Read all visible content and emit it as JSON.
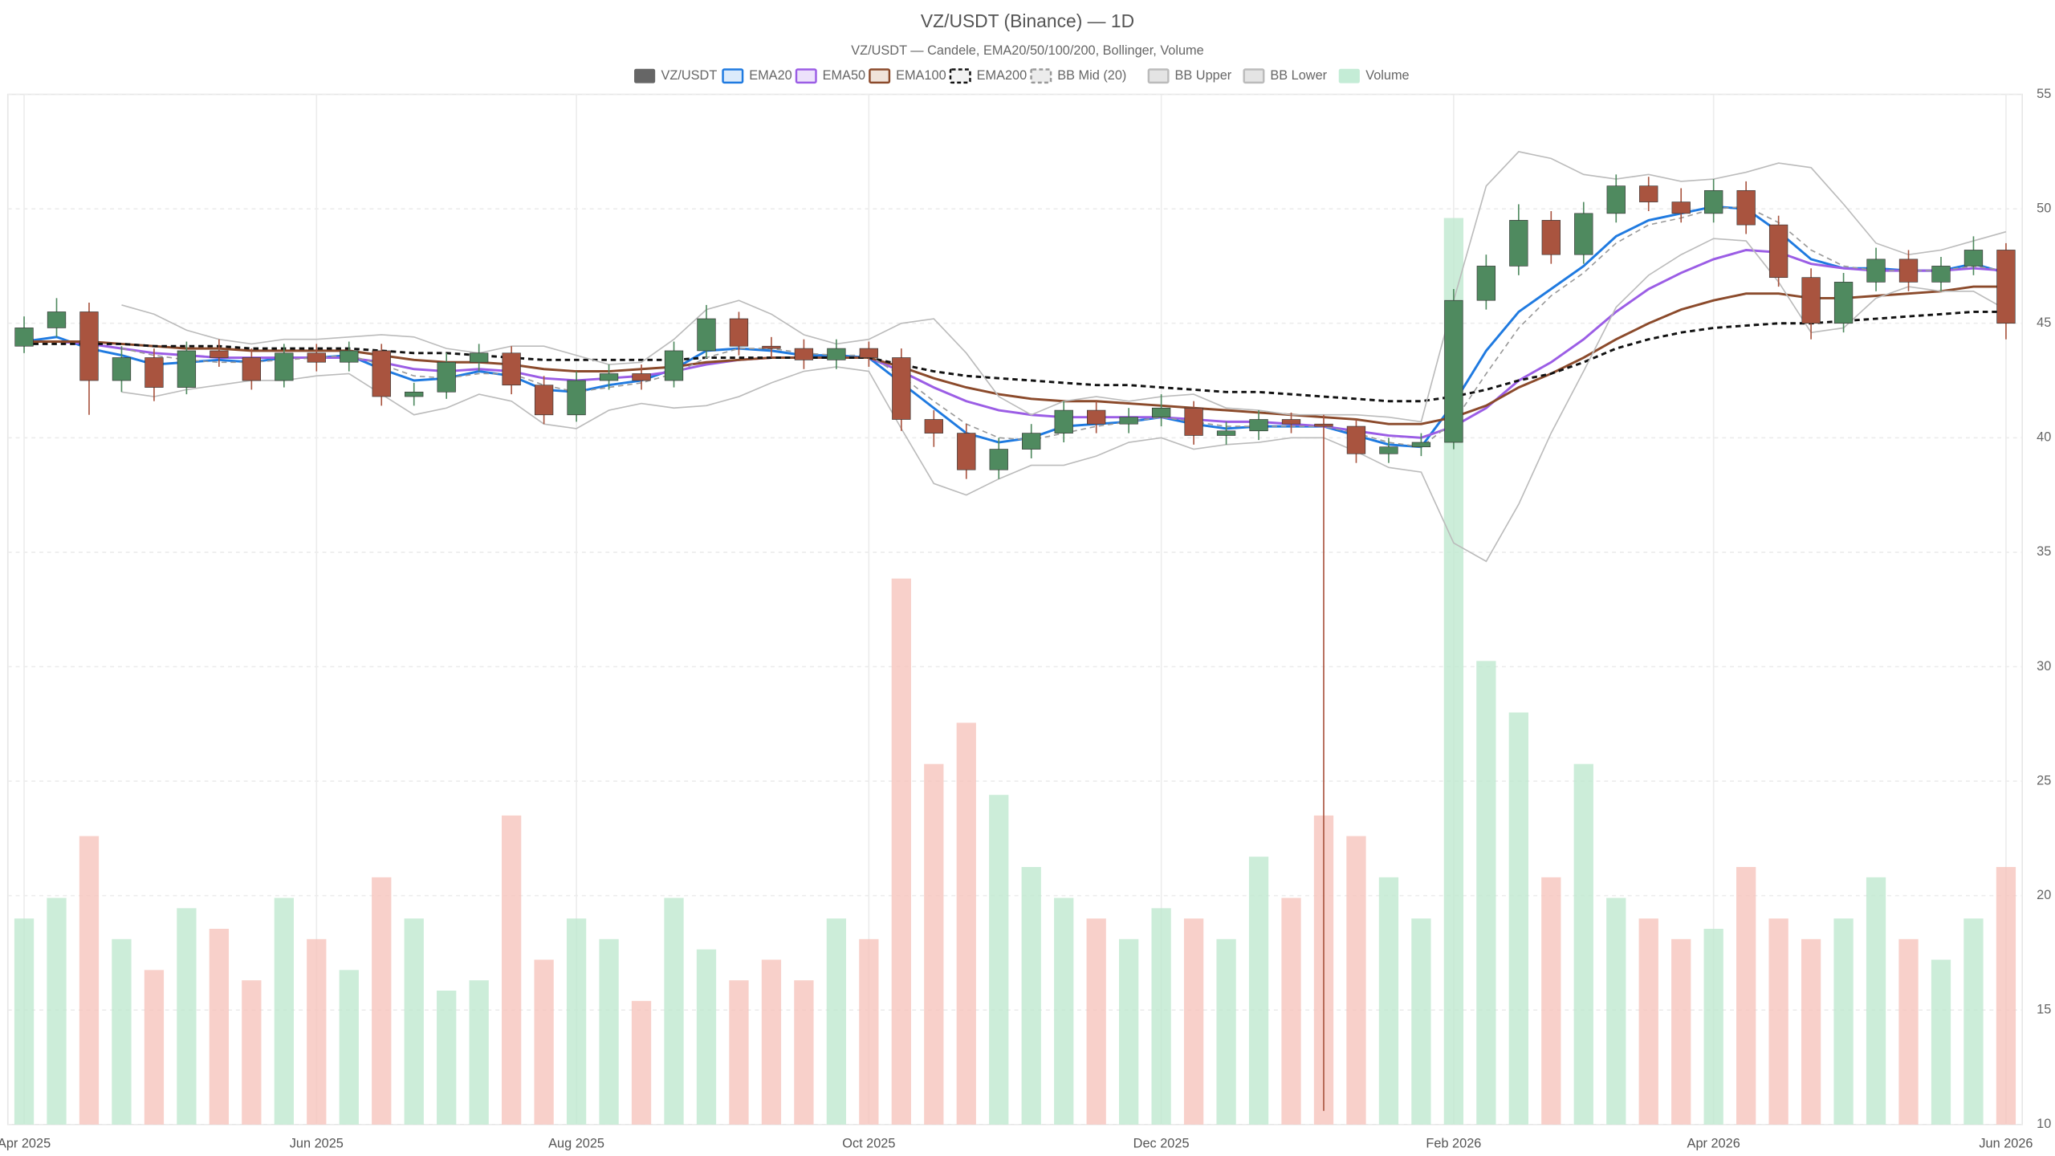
{
  "chart_data": {
    "type": "candlestick",
    "title": "VZ/USDT (Binance) — 1D",
    "subtitle": "VZ/USDT — Candele, EMA20/50/100/200, Bollinger, Volume",
    "categories": [
      "Apr 2025",
      null,
      null,
      null,
      null,
      null,
      null,
      null,
      null,
      "Jun 2025",
      null,
      null,
      null,
      null,
      null,
      null,
      null,
      "Aug 2025",
      null,
      null,
      null,
      null,
      null,
      null,
      null,
      null,
      "Oct 2025",
      null,
      null,
      null,
      null,
      null,
      null,
      null,
      null,
      "Dec 2025",
      null,
      null,
      null,
      null,
      null,
      null,
      null,
      null,
      "Feb 2026",
      null,
      null,
      null,
      null,
      null,
      null,
      null,
      "Apr 2026",
      null,
      null,
      null,
      null,
      null,
      null,
      null,
      null,
      "Jun 2026"
    ],
    "ylim": [
      10,
      55
    ],
    "yticks": [
      10,
      15,
      20,
      25,
      30,
      35,
      40,
      45,
      50,
      55
    ],
    "y2lim": [
      0,
      100
    ],
    "grid": true,
    "legend": "top",
    "series": [
      {
        "name": "VZ/USDT",
        "type": "candlestick",
        "color": "#666666",
        "up_color": "#4f8a5f",
        "down_color": "#a9543f",
        "open": [
          44.0,
          44.8,
          45.5,
          42.5,
          43.5,
          42.2,
          43.8,
          43.5,
          42.5,
          43.7,
          43.3,
          43.8,
          41.8,
          42.0,
          43.3,
          43.7,
          42.3,
          41.0,
          42.5,
          42.8,
          42.5,
          43.8,
          45.2,
          44.0,
          43.9,
          43.4,
          43.9,
          43.5,
          40.8,
          40.2,
          38.6,
          39.5,
          40.2,
          41.2,
          40.6,
          40.9,
          41.3,
          40.1,
          40.3,
          40.8,
          40.6,
          40.5,
          39.3,
          39.6,
          39.8,
          46.0,
          47.5,
          49.5,
          48.0,
          49.8,
          51.0,
          50.3,
          49.8,
          50.8,
          49.3,
          47.0,
          45.0,
          46.8,
          47.8,
          46.8,
          47.5,
          48.2
        ],
        "high": [
          45.3,
          46.1,
          45.9,
          44.0,
          43.9,
          44.2,
          44.3,
          43.9,
          44.1,
          44.1,
          44.2,
          44.1,
          42.4,
          43.7,
          44.1,
          44.0,
          42.7,
          42.9,
          43.2,
          43.2,
          44.2,
          45.8,
          45.5,
          44.4,
          44.3,
          44.3,
          44.2,
          43.9,
          41.2,
          40.6,
          40.0,
          40.6,
          41.6,
          41.6,
          41.3,
          41.9,
          41.6,
          40.7,
          41.2,
          41.1,
          41.0,
          40.8,
          40.0,
          40.2,
          46.5,
          48.0,
          50.2,
          49.9,
          50.3,
          51.5,
          51.4,
          50.9,
          51.3,
          51.2,
          49.7,
          47.4,
          47.2,
          48.3,
          48.2,
          47.9,
          48.8,
          48.5
        ],
        "low": [
          43.7,
          44.4,
          41.0,
          42.0,
          41.6,
          41.9,
          43.1,
          42.1,
          42.2,
          42.9,
          42.9,
          41.4,
          41.4,
          41.7,
          42.9,
          41.9,
          40.6,
          40.7,
          42.1,
          42.1,
          42.2,
          43.5,
          43.6,
          43.5,
          43.0,
          43.0,
          43.1,
          40.3,
          39.6,
          38.2,
          38.2,
          39.1,
          39.8,
          40.2,
          40.2,
          40.5,
          39.7,
          39.7,
          39.9,
          40.2,
          10.6,
          38.9,
          38.9,
          39.2,
          39.5,
          45.6,
          47.1,
          47.6,
          47.6,
          49.4,
          49.9,
          49.4,
          49.4,
          48.9,
          46.6,
          44.3,
          44.6,
          46.4,
          46.4,
          46.4,
          47.1,
          44.3
        ],
        "close": [
          44.8,
          45.5,
          42.5,
          43.5,
          42.2,
          43.8,
          43.5,
          42.5,
          43.7,
          43.3,
          43.8,
          41.8,
          42.0,
          43.3,
          43.7,
          42.3,
          41.0,
          42.5,
          42.8,
          42.5,
          43.8,
          45.2,
          44.0,
          43.9,
          43.4,
          43.9,
          43.5,
          40.8,
          40.2,
          38.6,
          39.5,
          40.2,
          41.2,
          40.6,
          40.9,
          41.3,
          40.1,
          40.3,
          40.8,
          40.6,
          40.5,
          39.3,
          39.6,
          39.8,
          46.0,
          47.5,
          49.5,
          48.0,
          49.8,
          51.0,
          50.3,
          49.8,
          50.8,
          49.3,
          47.0,
          45.0,
          46.8,
          47.8,
          46.8,
          47.5,
          48.2,
          45.0
        ]
      },
      {
        "name": "EMA20",
        "type": "line",
        "color": "#1f7ae0",
        "fill": "#dcebfb",
        "values": [
          44.2,
          44.4,
          43.9,
          43.6,
          43.2,
          43.3,
          43.4,
          43.3,
          43.5,
          43.5,
          43.6,
          43.0,
          42.5,
          42.6,
          42.9,
          42.7,
          42.1,
          42.0,
          42.3,
          42.5,
          43.0,
          43.8,
          43.9,
          43.8,
          43.6,
          43.6,
          43.5,
          42.4,
          41.3,
          40.2,
          39.8,
          40.0,
          40.5,
          40.6,
          40.7,
          40.9,
          40.6,
          40.4,
          40.5,
          40.5,
          40.5,
          40.1,
          39.7,
          39.6,
          41.5,
          43.8,
          45.5,
          46.5,
          47.5,
          48.8,
          49.5,
          49.8,
          50.1,
          50.0,
          49.0,
          47.8,
          47.4,
          47.4,
          47.3,
          47.3,
          47.6,
          47.2
        ]
      },
      {
        "name": "EMA50",
        "type": "line",
        "color": "#9b5de5",
        "fill": "#ede2fb",
        "values": [
          44.2,
          44.2,
          44.1,
          43.9,
          43.7,
          43.6,
          43.5,
          43.5,
          43.5,
          43.5,
          43.5,
          43.3,
          43.0,
          42.9,
          43.0,
          42.9,
          42.6,
          42.5,
          42.6,
          42.7,
          42.9,
          43.2,
          43.4,
          43.5,
          43.5,
          43.5,
          43.5,
          42.9,
          42.2,
          41.6,
          41.2,
          41.0,
          40.9,
          40.9,
          40.9,
          40.9,
          40.8,
          40.7,
          40.7,
          40.6,
          40.5,
          40.3,
          40.1,
          40.0,
          40.5,
          41.3,
          42.5,
          43.3,
          44.3,
          45.5,
          46.5,
          47.2,
          47.8,
          48.2,
          48.1,
          47.6,
          47.4,
          47.3,
          47.3,
          47.3,
          47.4,
          47.3
        ]
      },
      {
        "name": "EMA100",
        "type": "line",
        "color": "#8b4a2b",
        "fill": "#f0e3da",
        "values": [
          44.2,
          44.2,
          44.2,
          44.1,
          44.0,
          43.9,
          43.9,
          43.8,
          43.8,
          43.8,
          43.8,
          43.6,
          43.4,
          43.3,
          43.3,
          43.2,
          43.0,
          42.9,
          42.9,
          43.0,
          43.1,
          43.3,
          43.4,
          43.5,
          43.5,
          43.5,
          43.5,
          43.1,
          42.6,
          42.2,
          41.9,
          41.7,
          41.6,
          41.6,
          41.5,
          41.4,
          41.3,
          41.2,
          41.1,
          41.0,
          40.9,
          40.8,
          40.6,
          40.6,
          40.9,
          41.4,
          42.2,
          42.8,
          43.5,
          44.3,
          45.0,
          45.6,
          46.0,
          46.3,
          46.3,
          46.1,
          46.1,
          46.2,
          46.3,
          46.4,
          46.6,
          46.6
        ]
      },
      {
        "name": "EMA200",
        "type": "line",
        "color": "#111111",
        "fill": "#f2f2f2",
        "dashed": true,
        "values": [
          44.1,
          44.1,
          44.1,
          44.1,
          44.0,
          44.0,
          44.0,
          43.9,
          43.9,
          43.9,
          43.9,
          43.8,
          43.7,
          43.7,
          43.6,
          43.5,
          43.4,
          43.4,
          43.4,
          43.4,
          43.4,
          43.5,
          43.5,
          43.5,
          43.5,
          43.5,
          43.5,
          43.2,
          42.9,
          42.7,
          42.6,
          42.5,
          42.4,
          42.3,
          42.3,
          42.2,
          42.1,
          42.0,
          42.0,
          41.9,
          41.8,
          41.7,
          41.6,
          41.6,
          41.8,
          42.1,
          42.5,
          42.8,
          43.3,
          43.9,
          44.3,
          44.6,
          44.8,
          44.9,
          45.0,
          45.0,
          45.1,
          45.2,
          45.3,
          45.4,
          45.5,
          45.5
        ]
      },
      {
        "name": "BB Mid (20)",
        "type": "line",
        "color": "#999999",
        "fill": "#ececec",
        "dashed": true,
        "values": [
          null,
          null,
          null,
          43.9,
          43.6,
          43.4,
          43.3,
          43.3,
          43.4,
          43.5,
          43.6,
          43.2,
          42.7,
          42.6,
          42.8,
          42.8,
          42.3,
          42.0,
          42.2,
          42.4,
          42.8,
          43.5,
          43.9,
          43.9,
          43.7,
          43.6,
          43.6,
          42.7,
          41.6,
          40.6,
          40.0,
          39.9,
          40.2,
          40.5,
          40.7,
          40.9,
          40.7,
          40.5,
          40.5,
          40.5,
          40.5,
          40.2,
          39.8,
          39.6,
          40.7,
          42.8,
          44.8,
          46.2,
          47.2,
          48.5,
          49.3,
          49.6,
          50.0,
          50.1,
          49.4,
          48.2,
          47.5,
          47.3,
          47.3,
          47.3,
          47.5,
          47.3
        ]
      },
      {
        "name": "BB Upper",
        "type": "line",
        "color": "#bbbbbb",
        "fill": "#e4e4e4",
        "values": [
          null,
          null,
          null,
          45.8,
          45.4,
          44.7,
          44.3,
          44.1,
          44.3,
          44.3,
          44.4,
          44.5,
          44.4,
          43.9,
          43.7,
          44.0,
          44.0,
          43.6,
          43.2,
          43.3,
          44.3,
          45.6,
          46.0,
          45.4,
          44.5,
          44.1,
          44.3,
          45.0,
          45.2,
          43.7,
          41.8,
          41.0,
          41.6,
          41.8,
          41.6,
          41.8,
          41.9,
          41.3,
          41.2,
          41.0,
          41.0,
          41.0,
          40.9,
          40.7,
          46.0,
          51.0,
          52.5,
          52.2,
          51.5,
          51.3,
          51.5,
          51.2,
          51.3,
          51.6,
          52.0,
          51.8,
          50.2,
          48.5,
          48.0,
          48.2,
          48.6,
          49.0
        ]
      },
      {
        "name": "BB Lower",
        "type": "line",
        "color": "#bbbbbb",
        "fill": "#e4e4e4",
        "values": [
          null,
          null,
          null,
          42.0,
          41.8,
          42.1,
          42.3,
          42.5,
          42.5,
          42.7,
          42.8,
          41.9,
          41.0,
          41.3,
          41.9,
          41.6,
          40.6,
          40.4,
          41.2,
          41.5,
          41.3,
          41.4,
          41.8,
          42.4,
          42.9,
          43.1,
          42.9,
          40.4,
          38.0,
          37.5,
          38.2,
          38.8,
          38.8,
          39.2,
          39.8,
          40.0,
          39.5,
          39.7,
          39.8,
          40.0,
          40.0,
          39.4,
          38.7,
          38.5,
          35.4,
          34.6,
          37.1,
          40.2,
          42.9,
          45.7,
          47.1,
          48.0,
          48.7,
          48.6,
          46.8,
          44.6,
          44.8,
          46.1,
          46.6,
          46.4,
          46.4,
          45.6
        ]
      },
      {
        "name": "Volume",
        "type": "volume",
        "axis": "y2",
        "color": "#c4ecd6",
        "up_color": "#bfe8d0",
        "down_color": "#f6c4bd",
        "values": [
          20,
          22,
          28,
          18,
          15,
          21,
          19,
          14,
          22,
          18,
          15,
          24,
          20,
          13,
          14,
          30,
          16,
          20,
          18,
          12,
          22,
          17,
          14,
          16,
          14,
          20,
          18,
          53,
          35,
          39,
          32,
          25,
          22,
          20,
          18,
          21,
          20,
          18,
          26,
          22,
          30,
          28,
          24,
          20,
          88,
          45,
          40,
          24,
          35,
          22,
          20,
          18,
          19,
          25,
          20,
          18,
          20,
          24,
          18,
          16,
          20,
          25
        ]
      }
    ]
  }
}
